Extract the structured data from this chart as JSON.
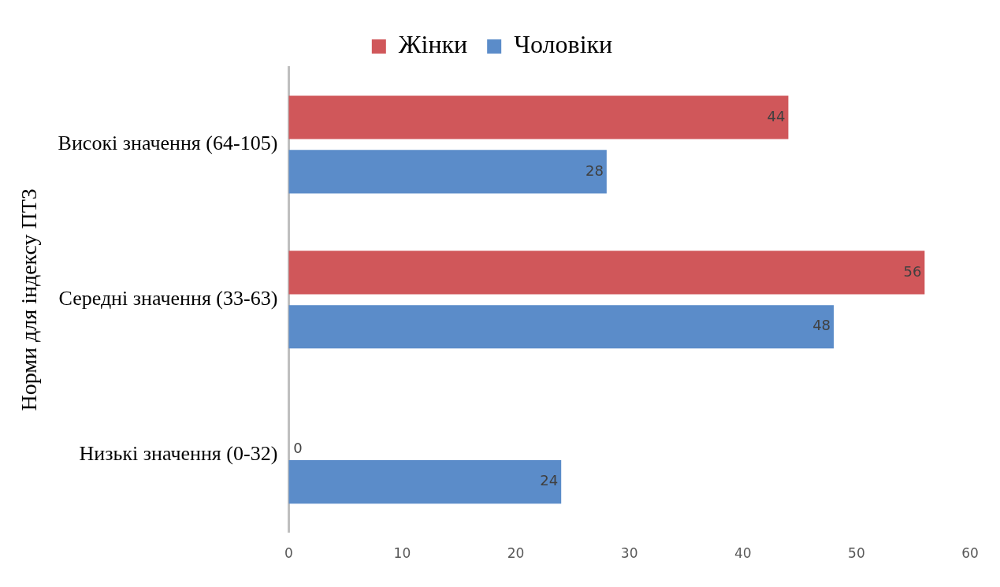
{
  "chart_data": {
    "type": "bar",
    "orientation": "horizontal",
    "ylabel": "Норми для індексу ПТЗ",
    "categories": [
      "Високі значення (64-105)",
      "Середні значення (33-63)",
      "Низькі значення (0-32)"
    ],
    "series": [
      {
        "name": "Жінки",
        "color": "#d0575a",
        "values": [
          44,
          56,
          0
        ]
      },
      {
        "name": "Чоловіки",
        "color": "#5b8cc9",
        "values": [
          28,
          48,
          24
        ]
      }
    ],
    "xlim": [
      0,
      60
    ],
    "xticks": [
      0,
      10,
      20,
      30,
      40,
      50,
      60
    ],
    "grid": false,
    "legend": "top",
    "data_labels": true
  }
}
